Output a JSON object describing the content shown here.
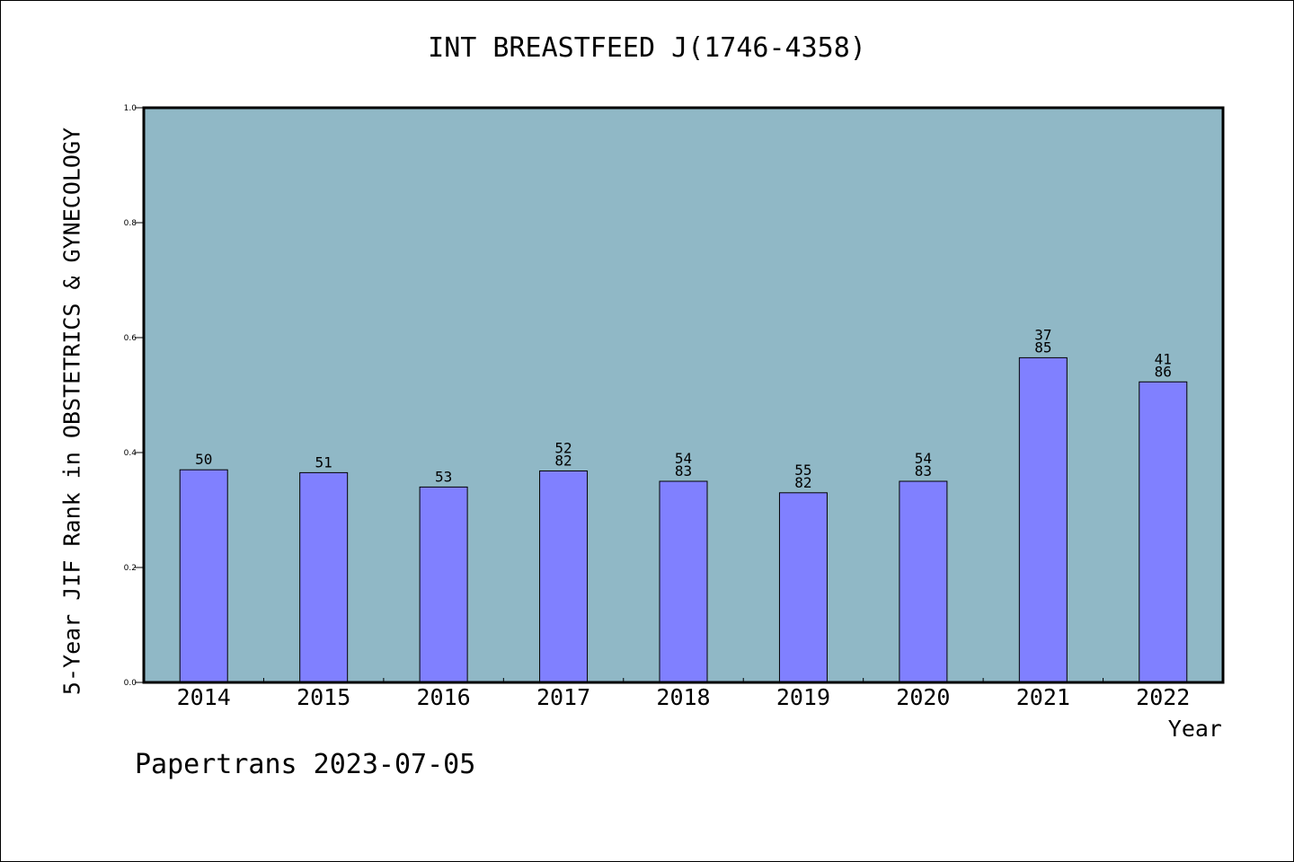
{
  "chart_data": {
    "type": "bar",
    "title": "INT BREASTFEED J(1746-4358)",
    "xlabel": "Year",
    "ylabel": "5-Year JIF Rank in OBSTETRICS & GYNECOLOGY",
    "ylim": [
      0,
      1.0
    ],
    "yticks": [
      "0.0",
      "0.2",
      "0.4",
      "0.6",
      "0.8",
      "1.0"
    ],
    "categories": [
      "2014",
      "2015",
      "2016",
      "2017",
      "2018",
      "2019",
      "2020",
      "2021",
      "2022"
    ],
    "values": [
      0.37,
      0.365,
      0.34,
      0.368,
      0.35,
      0.33,
      0.35,
      0.565,
      0.523
    ],
    "bar_labels": [
      [
        "50"
      ],
      [
        "51"
      ],
      [
        "53"
      ],
      [
        "52",
        "82"
      ],
      [
        "54",
        "83"
      ],
      [
        "55",
        "82"
      ],
      [
        "54",
        "83"
      ],
      [
        "37",
        "85"
      ],
      [
        "41",
        "86"
      ]
    ],
    "plot_background": "#90b8c6",
    "bar_color": "#8080ff",
    "grid": false
  },
  "footer": "Papertrans 2023-07-05"
}
